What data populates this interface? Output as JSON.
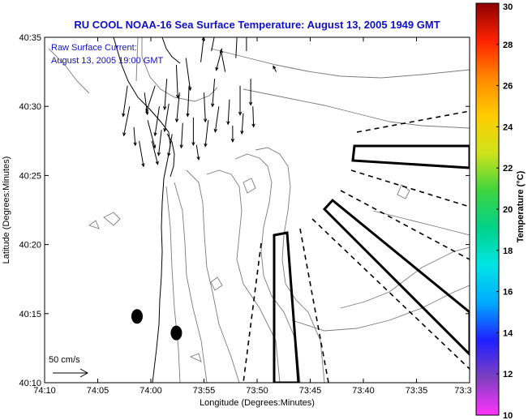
{
  "chart_data": {
    "type": "map-vector-field",
    "title": "RU COOL  NOAA-16  Sea Surface Temperature:  August 13, 2005 1949 GMT",
    "annotation_lines": [
      "Raw Surface Current:",
      "August 13, 2005 19:00 GMT"
    ],
    "xlabel": "Longitude (Degrees:Minutes)",
    "ylabel": "Latitude (Degrees:Minutes)",
    "x_ticks": [
      "74:10",
      "74:05",
      "74:00",
      "73:55",
      "73:50",
      "73:45",
      "73:40",
      "73:35",
      "73:3"
    ],
    "y_ticks": [
      "40:10",
      "40:15",
      "40:20",
      "40:25",
      "40:30",
      "40:35"
    ],
    "xlim_minutes_west": [
      10,
      30
    ],
    "ylim_minutes_north": [
      10,
      35
    ],
    "scale_label": "50 cm/s",
    "colorbar": {
      "label": "Temperature (°C)",
      "ticks": [
        "10",
        "12",
        "14",
        "16",
        "18",
        "20",
        "22",
        "24",
        "26",
        "28",
        "30"
      ],
      "range": [
        10,
        30
      ],
      "colors": [
        "#ff33ff",
        "#7f3fbf",
        "#1f1fff",
        "#00aaff",
        "#00e5e5",
        "#00d28a",
        "#3fd43f",
        "#cfe31a",
        "#ffcc00",
        "#ff8800",
        "#ff2200",
        "#8c0000"
      ]
    },
    "current_vectors": [
      {
        "lon": 2.2,
        "lat": 31.5,
        "u": -6,
        "v": -42
      },
      {
        "lon": 2.0,
        "lat": 30.0,
        "u": -8,
        "v": -40
      },
      {
        "lon": 1.6,
        "lat": 28.5,
        "u": 2,
        "v": -25
      },
      {
        "lon": 1.1,
        "lat": 27.5,
        "u": 6,
        "v": -35
      },
      {
        "lon": 0.6,
        "lat": 31.0,
        "u": 4,
        "v": -30
      },
      {
        "lon": 0.3,
        "lat": 29.0,
        "u": 10,
        "v": -38
      },
      {
        "lon": 359.9,
        "lat": 27.5,
        "u": 8,
        "v": -32
      },
      {
        "lon": 359.6,
        "lat": 31.5,
        "u": -12,
        "v": -36
      },
      {
        "lon": 359.2,
        "lat": 30.0,
        "u": -6,
        "v": -40
      },
      {
        "lon": 359.0,
        "lat": 28.3,
        "u": -4,
        "v": -35
      },
      {
        "lon": 358.5,
        "lat": 32.0,
        "u": -3,
        "v": -42
      },
      {
        "lon": 358.3,
        "lat": 30.2,
        "u": -6,
        "v": -38
      },
      {
        "lon": 358.0,
        "lat": 28.0,
        "u": -5,
        "v": -30
      },
      {
        "lon": 357.6,
        "lat": 33.0,
        "u": 2,
        "v": -45
      },
      {
        "lon": 357.3,
        "lat": 31.0,
        "u": -4,
        "v": -40
      },
      {
        "lon": 357.0,
        "lat": 28.8,
        "u": -2,
        "v": -34
      },
      {
        "lon": 356.7,
        "lat": 33.5,
        "u": 6,
        "v": -44
      },
      {
        "lon": 356.4,
        "lat": 31.5,
        "u": -2,
        "v": -42
      },
      {
        "lon": 356.0,
        "lat": 29.2,
        "u": 0,
        "v": -38
      },
      {
        "lon": 355.7,
        "lat": 27.2,
        "u": 3,
        "v": -20
      },
      {
        "lon": 355.3,
        "lat": 33.2,
        "u": 4,
        "v": 34
      },
      {
        "lon": 355.0,
        "lat": 31.0,
        "u": 2,
        "v": -40
      },
      {
        "lon": 354.6,
        "lat": 29.0,
        "u": -4,
        "v": -36
      },
      {
        "lon": 354.3,
        "lat": 34.0,
        "u": 6,
        "v": 30
      },
      {
        "lon": 354.0,
        "lat": 32.0,
        "u": -3,
        "v": -38
      },
      {
        "lon": 353.6,
        "lat": 30.0,
        "u": -5,
        "v": -35
      },
      {
        "lon": 353.3,
        "lat": 34.2,
        "u": -8,
        "v": -30
      },
      {
        "lon": 353.0,
        "lat": 32.5,
        "u": -6,
        "v": 30
      },
      {
        "lon": 352.6,
        "lat": 30.5,
        "u": -2,
        "v": -34
      },
      {
        "lon": 352.3,
        "lat": 28.6,
        "u": 0,
        "v": -22
      },
      {
        "lon": 352.0,
        "lat": 33.5,
        "u": 2,
        "v": 38
      },
      {
        "lon": 351.6,
        "lat": 31.5,
        "u": 0,
        "v": -40
      },
      {
        "lon": 351.3,
        "lat": 29.5,
        "u": -2,
        "v": -28
      },
      {
        "lon": 351.0,
        "lat": 34.0,
        "u": 0,
        "v": 40
      },
      {
        "lon": 350.6,
        "lat": 32.0,
        "u": 0,
        "v": -36
      },
      {
        "lon": 350.4,
        "lat": 30.0,
        "u": 1,
        "v": -28
      },
      {
        "lon": 348.2,
        "lat": 32.5,
        "u": -4,
        "v": 8
      },
      {
        "lon": 352.5,
        "lat": 35.0,
        "u": 2,
        "v": 10
      }
    ],
    "ellipses": [
      {
        "lon": 1.3,
        "lat": 14.8
      },
      {
        "lon": 357.6,
        "lat": 13.6
      }
    ]
  }
}
